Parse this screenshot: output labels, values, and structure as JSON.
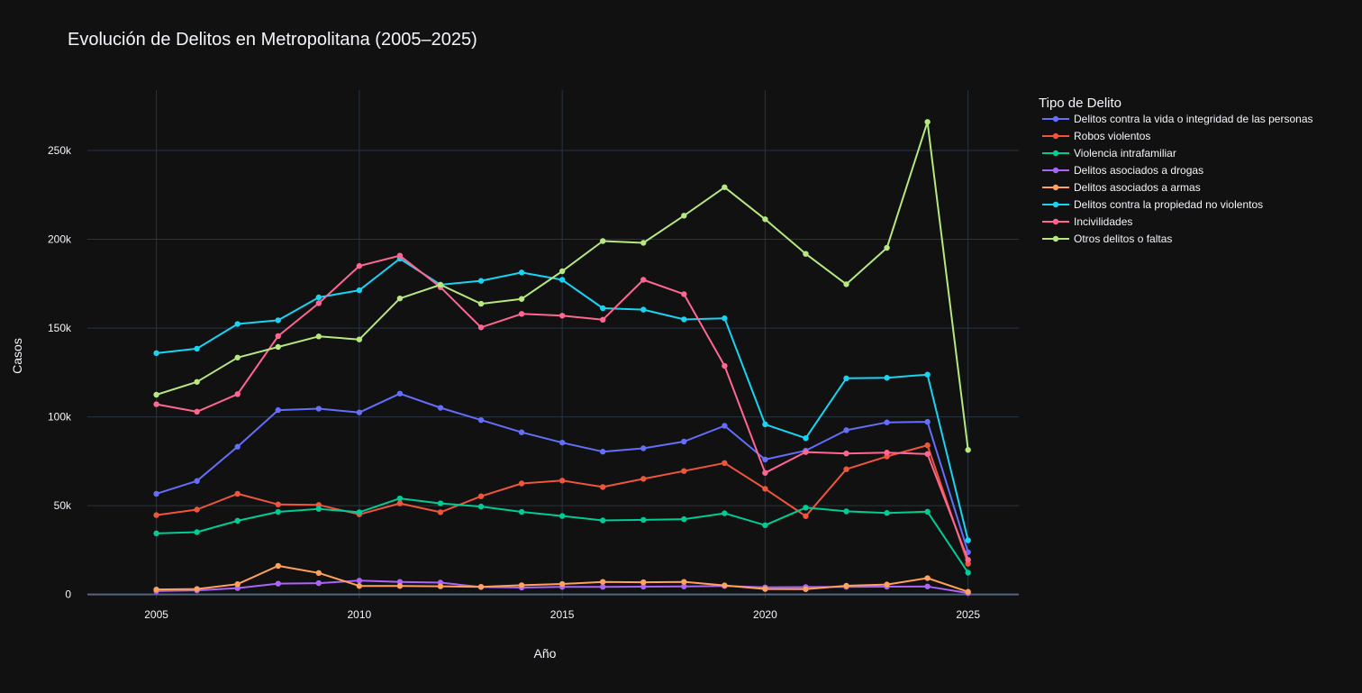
{
  "chart_data": {
    "type": "line",
    "title": "Evolución de Delitos en Metropolitana (2005–2025)",
    "xlabel": "Año",
    "ylabel": "Casos",
    "legend_title": "Tipo de Delito",
    "legend_position": "top-right, outside plot",
    "grid": true,
    "x": [
      2005,
      2006,
      2007,
      2008,
      2009,
      2010,
      2011,
      2012,
      2013,
      2014,
      2015,
      2016,
      2017,
      2018,
      2019,
      2020,
      2021,
      2022,
      2023,
      2024,
      2025
    ],
    "xlim": [
      2003.3,
      2026.25
    ],
    "ylim": [
      -2200,
      284000
    ],
    "x_ticks": [
      2005,
      2010,
      2015,
      2020,
      2025
    ],
    "x_tick_labels": [
      "2005",
      "2010",
      "2015",
      "2020",
      "2025"
    ],
    "y_ticks": [
      0,
      50000,
      100000,
      150000,
      200000,
      250000
    ],
    "y_tick_labels": [
      "0",
      "50k",
      "100k",
      "150k",
      "200k",
      "250k"
    ],
    "series": [
      {
        "name": "Delitos contra la vida o integridad de las personas",
        "color": "#636efa",
        "values": [
          56700,
          63900,
          83200,
          103800,
          104600,
          102500,
          113100,
          105100,
          98200,
          91300,
          85500,
          80400,
          82300,
          86100,
          95000,
          76000,
          81000,
          92500,
          96900,
          97200,
          23800
        ]
      },
      {
        "name": "Robos violentos",
        "color": "#ef553b",
        "values": [
          44700,
          47800,
          56700,
          50700,
          50400,
          45100,
          51300,
          46300,
          55300,
          62500,
          64100,
          60500,
          65100,
          69500,
          74000,
          59500,
          44100,
          70500,
          77700,
          84000,
          17300
        ]
      },
      {
        "name": "Violencia intrafamiliar",
        "color": "#00cc96",
        "values": [
          34400,
          35100,
          41500,
          46500,
          48200,
          46300,
          54100,
          51300,
          49500,
          46500,
          44200,
          41700,
          42000,
          42400,
          45700,
          39000,
          48900,
          46800,
          45900,
          46600,
          12300
        ]
      },
      {
        "name": "Delitos asociados a drogas",
        "color": "#ab63fa",
        "values": [
          1900,
          2300,
          3600,
          6100,
          6400,
          7800,
          7100,
          6700,
          4200,
          3900,
          4300,
          4300,
          4400,
          4500,
          4800,
          4000,
          4200,
          4300,
          4400,
          4500,
          800
        ]
      },
      {
        "name": "Delitos asociados a armas",
        "color": "#ffa15a",
        "values": [
          2800,
          3100,
          5800,
          16100,
          12100,
          4800,
          4800,
          4600,
          4300,
          5200,
          5900,
          7100,
          6900,
          7100,
          5100,
          3100,
          3000,
          4900,
          5600,
          9200,
          1500
        ]
      },
      {
        "name": "Delitos contra la propiedad no violentos",
        "color": "#19d3f3",
        "values": [
          135900,
          138400,
          152300,
          154400,
          167300,
          171300,
          189100,
          174400,
          176600,
          181300,
          177200,
          161200,
          160400,
          154900,
          155500,
          95800,
          88000,
          121700,
          122000,
          123800,
          30500
        ]
      },
      {
        "name": "Incivilidades",
        "color": "#ff6692",
        "values": [
          107100,
          102900,
          112800,
          145500,
          164000,
          185000,
          190800,
          173000,
          150400,
          158000,
          157000,
          154700,
          177200,
          169100,
          128700,
          68500,
          80200,
          79400,
          79900,
          79100,
          19500
        ]
      },
      {
        "name": "Otros delitos o faltas",
        "color": "#b6e880",
        "values": [
          112500,
          119700,
          133400,
          139400,
          145300,
          143600,
          166700,
          174400,
          163700,
          166400,
          182000,
          199000,
          198000,
          213300,
          229300,
          211300,
          191800,
          174700,
          195200,
          266100,
          81400
        ]
      }
    ]
  }
}
